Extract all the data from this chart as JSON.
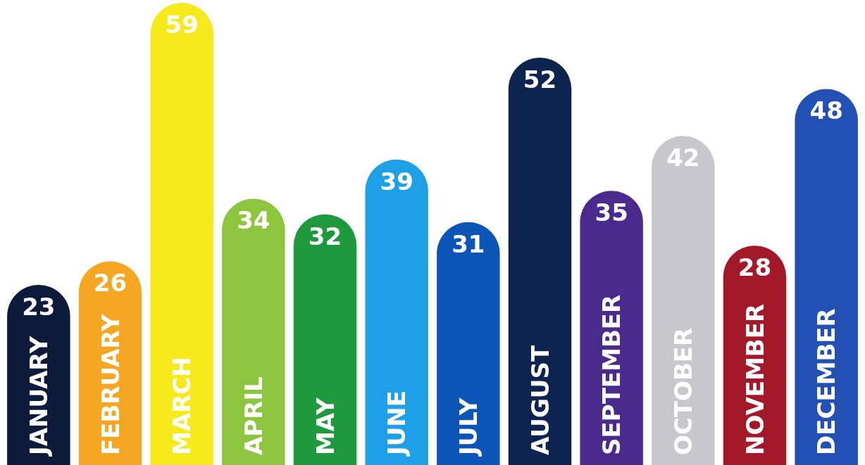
{
  "chart_data": {
    "type": "bar",
    "categories": [
      "JANUARY",
      "FEBRUARY",
      "MARCH",
      "APRIL",
      "MAY",
      "JUNE",
      "JULY",
      "AUGUST",
      "SEPTEMBER",
      "OCTOBER",
      "NOVEMBER",
      "DECEMBER"
    ],
    "values": [
      23,
      26,
      59,
      34,
      32,
      39,
      31,
      52,
      35,
      42,
      28,
      48
    ],
    "colors": [
      "#0d1b3a",
      "#f5a623",
      "#f7ea1c",
      "#8cc63f",
      "#1e9a3c",
      "#1ea0e6",
      "#0a55b5",
      "#0d2450",
      "#4a2a8c",
      "#c8c8cc",
      "#a3192a",
      "#2250b5"
    ],
    "data_labels": true
  }
}
